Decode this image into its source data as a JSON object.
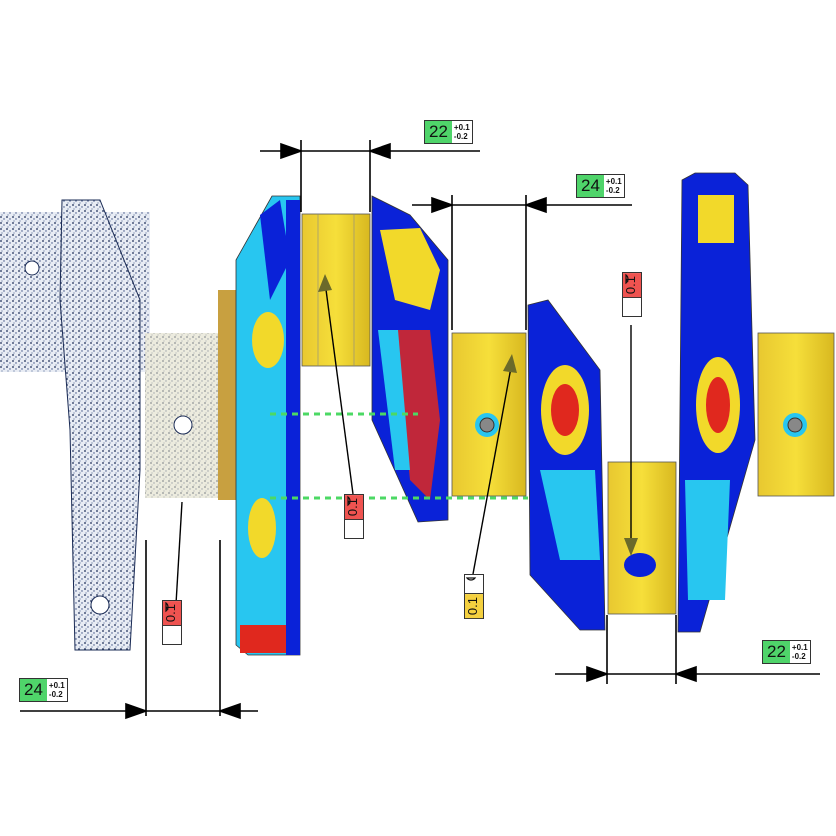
{
  "colors": {
    "tol_green": "#4fd46a",
    "gdt_red": "#ef5350",
    "gdt_yellow": "#f4d03f",
    "deviation_blue": "#0a22d8",
    "deviation_cyan": "#28c6f0",
    "deviation_yellow": "#f2d92a",
    "deviation_red": "#e0281e",
    "nominal_green_dash": "#4cd964"
  },
  "dimensions": [
    {
      "value": "22",
      "tol_plus": "+0.1",
      "tol_minus": "-0.2"
    },
    {
      "value": "24",
      "tol_plus": "+0.1",
      "tol_minus": "-0.2"
    },
    {
      "value": "22",
      "tol_plus": "+0.1",
      "tol_minus": "-0.2"
    },
    {
      "value": "24",
      "tol_plus": "+0.1",
      "tol_minus": "-0.2"
    }
  ],
  "gdt": [
    {
      "value": "0.1",
      "symbol": "profile-of-surface-icon",
      "color": "#ef5350"
    },
    {
      "value": "0.1",
      "symbol": "profile-of-surface-icon",
      "color": "#ef5350"
    },
    {
      "value": "0.1",
      "symbol": "profile-of-surface-icon",
      "color": "#f4d03f"
    },
    {
      "value": "0.1",
      "symbol": "profile-of-surface-icon",
      "color": "#ef5350"
    }
  ]
}
